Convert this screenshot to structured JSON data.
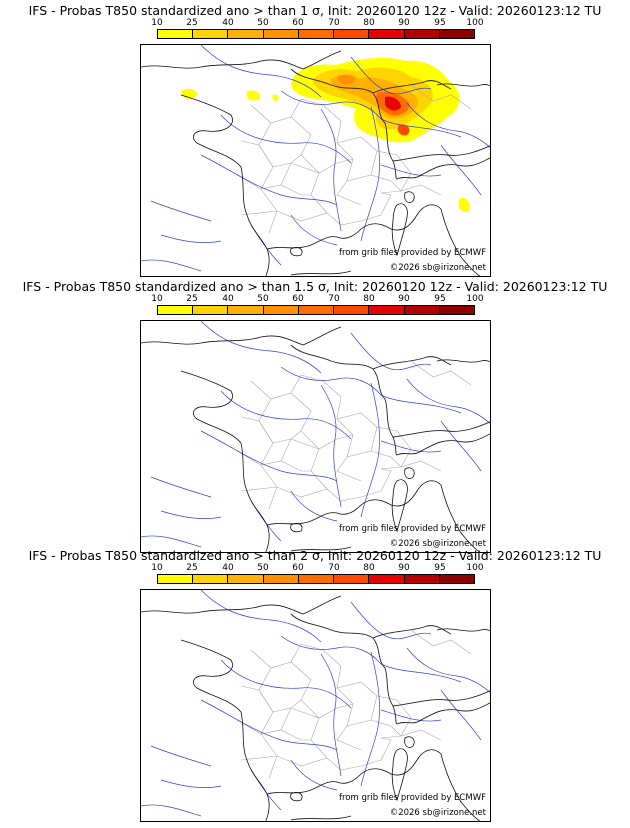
{
  "colorbar": {
    "ticks": [
      "10",
      "25",
      "40",
      "50",
      "60",
      "70",
      "80",
      "90",
      "95",
      "100"
    ],
    "colors": [
      "#ffff00",
      "#ffd400",
      "#ffb000",
      "#ff9000",
      "#ff6d00",
      "#ff4a00",
      "#e60000",
      "#b40000",
      "#8c0000",
      "#5a0000"
    ]
  },
  "panels": [
    {
      "title": "IFS - Probas T850  standardized ano > than 1 σ, Init: 20260120 12z - Valid: 20260123:12 TU",
      "credit": "from grib files provided by ECMWF",
      "copyright": "©2026 sb@irizone.net"
    },
    {
      "title": "IFS - Probas T850  standardized ano > than 1.5 σ, Init: 20260120 12z - Valid: 20260123:12 TU",
      "credit": "from grib files provided by ECMWF",
      "copyright": "©2026 sb@irizone.net"
    },
    {
      "title": "IFS - Probas T850  standardized ano > than 2 σ, Init: 20260120 12z - Valid: 20260123:12 TU",
      "credit": "from grib files provided by ECMWF",
      "copyright": "©2026 sb@irizone.net"
    }
  ]
}
